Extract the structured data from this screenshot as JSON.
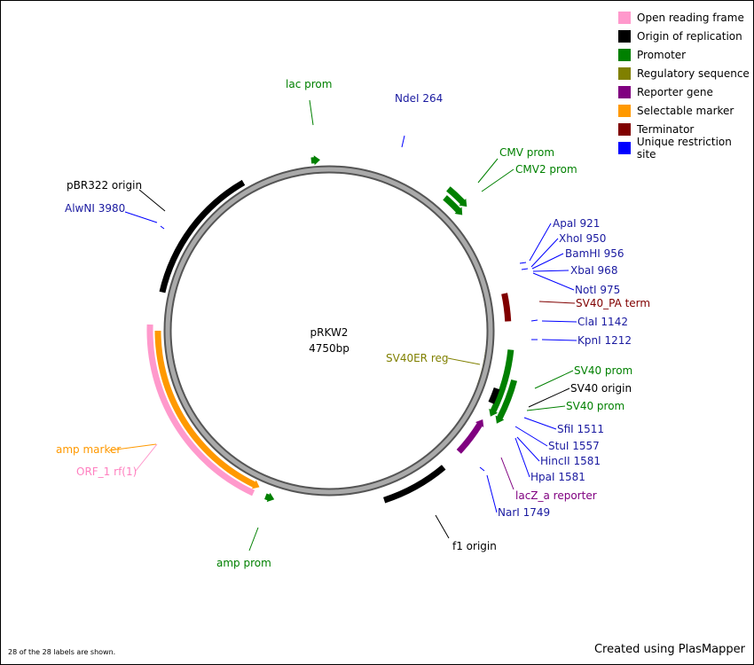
{
  "plasmid": {
    "name": "pRKW2",
    "size": "4750bp"
  },
  "legend": [
    {
      "label": "Open reading frame",
      "color": "#ff99cc"
    },
    {
      "label": "Origin of replication",
      "color": "#000000"
    },
    {
      "label": "Promoter",
      "color": "#008000"
    },
    {
      "label": "Regulatory sequence",
      "color": "#808000"
    },
    {
      "label": "Reporter gene",
      "color": "#800080"
    },
    {
      "label": "Selectable marker",
      "color": "#ff9900"
    },
    {
      "label": "Terminator",
      "color": "#800000"
    },
    {
      "label": "Unique restriction site",
      "color": "#0000ff"
    }
  ],
  "features": [
    {
      "label": "lac prom",
      "type": "Promoter"
    },
    {
      "label": "CMV prom",
      "type": "Promoter"
    },
    {
      "label": "CMV2 prom",
      "type": "Promoter"
    },
    {
      "label": "SV40_PA term",
      "type": "Terminator"
    },
    {
      "label": "SV40ER reg",
      "type": "Regulatory sequence"
    },
    {
      "label": "SV40 prom",
      "type": "Promoter"
    },
    {
      "label": "SV40 origin",
      "type": "Origin of replication"
    },
    {
      "label": "SV40 prom",
      "type": "Promoter"
    },
    {
      "label": "lacZ_a reporter",
      "type": "Reporter gene"
    },
    {
      "label": "f1 origin",
      "type": "Origin of replication"
    },
    {
      "label": "amp prom",
      "type": "Promoter"
    },
    {
      "label": "amp marker",
      "type": "Selectable marker"
    },
    {
      "label": "ORF_1 rf(1)",
      "type": "Open reading frame"
    },
    {
      "label": "pBR322 origin",
      "type": "Origin of replication"
    }
  ],
  "sites": [
    {
      "label": "NdeI 264"
    },
    {
      "label": "ApaI 921"
    },
    {
      "label": "XhoI 950"
    },
    {
      "label": "BamHI 956"
    },
    {
      "label": "XbaI 968"
    },
    {
      "label": "NotI 975"
    },
    {
      "label": "ClaI 1142"
    },
    {
      "label": "KpnI 1212"
    },
    {
      "label": "SfiI 1511"
    },
    {
      "label": "StuI 1557"
    },
    {
      "label": "HincII 1581"
    },
    {
      "label": "HpaI 1581"
    },
    {
      "label": "NarI 1749"
    },
    {
      "label": "AlwNI 3980"
    }
  ],
  "footer": {
    "count": "28 of the 28 labels are shown.",
    "credit": "Created using PlasMapper"
  }
}
